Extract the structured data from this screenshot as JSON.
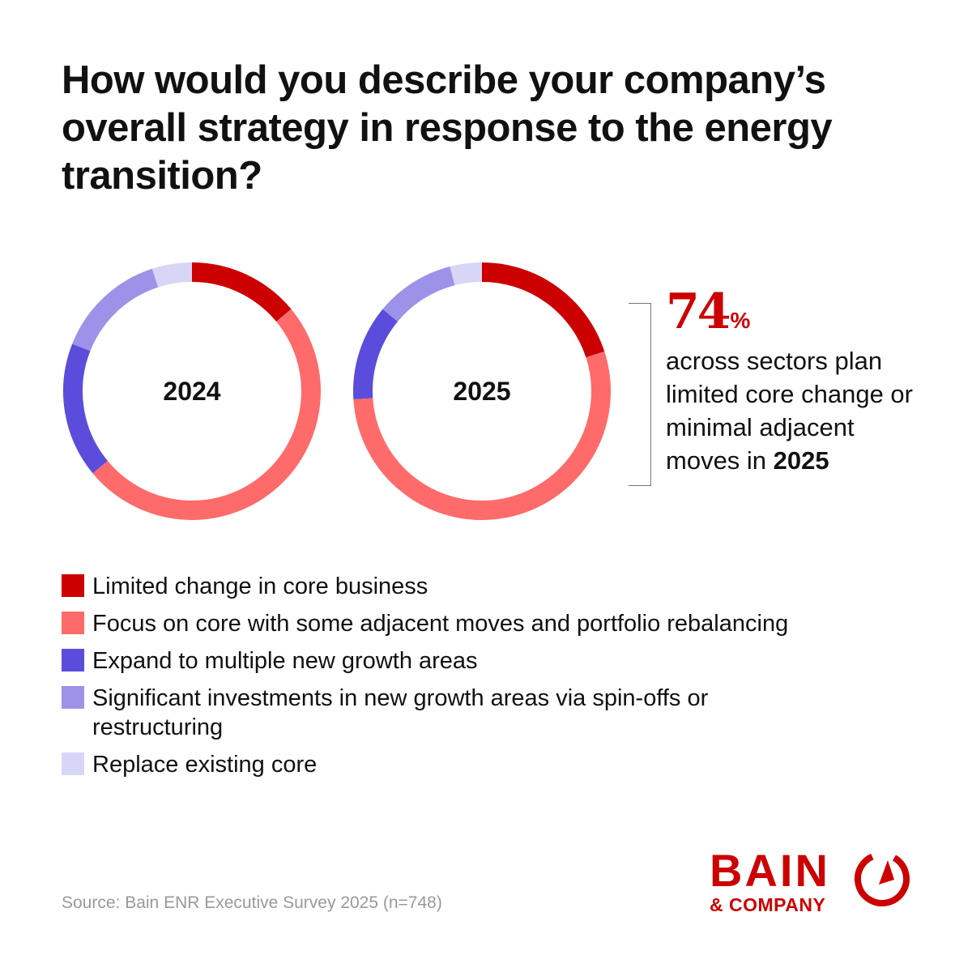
{
  "title": "How would you describe your company’s overall strategy in response to the energy transition?",
  "colors": {
    "limited": "#cc0000",
    "focus": "#ff6b6b",
    "expand": "#5b4ddb",
    "significant": "#9c93e8",
    "replace": "#d8d6f7",
    "brand_red": "#cc0000"
  },
  "chart_data": [
    {
      "type": "pie",
      "subtype": "donut",
      "center_label": "2024",
      "categories": [
        "Limited change in core business",
        "Focus on core with some adjacent moves and portfolio rebalancing",
        "Expand to multiple new growth areas",
        "Significant investments in new growth areas via spin-offs or restructuring",
        "Replace existing core"
      ],
      "values": [
        14,
        50,
        17,
        14,
        5
      ]
    },
    {
      "type": "pie",
      "subtype": "donut",
      "center_label": "2025",
      "categories": [
        "Limited change in core business",
        "Focus on core with some adjacent moves and portfolio rebalancing",
        "Expand to multiple new growth areas",
        "Significant investments in new growth areas via spin-offs or restructuring",
        "Replace existing core"
      ],
      "values": [
        20,
        54,
        12,
        10,
        4
      ]
    }
  ],
  "callout": {
    "stat_value": "74",
    "stat_unit": "%",
    "text_lead": "across sectors plan limited core change or minimal adjacent moves in ",
    "text_bold": "2025"
  },
  "legend": [
    {
      "label": "Limited change in core business",
      "color_key": "limited"
    },
    {
      "label": "Focus on core with some adjacent moves and portfolio rebalancing",
      "color_key": "focus"
    },
    {
      "label": "Expand to multiple new growth areas",
      "color_key": "expand"
    },
    {
      "label": "Significant investments in new growth areas via spin-offs or restructuring",
      "color_key": "significant"
    },
    {
      "label": "Replace existing core",
      "color_key": "replace"
    }
  ],
  "source": "Source: Bain ENR Executive Survey 2025 (n=748)",
  "logo": {
    "word": "BAIN",
    "sub": "& COMPANY",
    "icon": "bain-compass-icon"
  }
}
